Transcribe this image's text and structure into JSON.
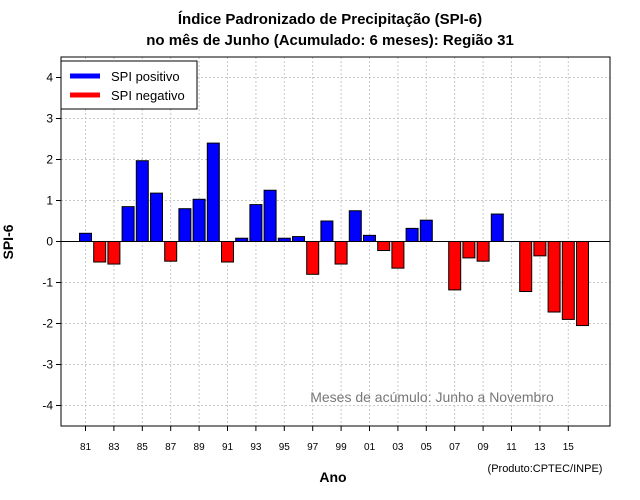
{
  "chart_data": {
    "type": "bar",
    "title_line1": "Índice Padronizado de Precipitação (SPI-6)",
    "title_line2": "no mês de Junho (Acumulado: 6 meses): Região 31",
    "xlabel": "Ano",
    "ylabel": "SPI-6",
    "ylim": [
      -4.5,
      4.5
    ],
    "yticks": [
      4,
      3,
      2,
      1,
      0,
      -1,
      -2,
      -3,
      -4
    ],
    "ytick_labels": [
      "4",
      "3",
      "2",
      "1",
      "0",
      "-1",
      "-2",
      "-3",
      "-4"
    ],
    "x_tick_labels": [
      "81",
      "83",
      "85",
      "87",
      "89",
      "91",
      "93",
      "95",
      "97",
      "99",
      "01",
      "03",
      "05",
      "07",
      "09",
      "11",
      "13",
      "15"
    ],
    "categories": [
      "1981",
      "1982",
      "1983",
      "1984",
      "1985",
      "1986",
      "1987",
      "1988",
      "1989",
      "1990",
      "1991",
      "1992",
      "1993",
      "1994",
      "1995",
      "1996",
      "1997",
      "1998",
      "1999",
      "2000",
      "2001",
      "2002",
      "2003",
      "2004",
      "2005",
      "2006",
      "2007",
      "2008",
      "2009",
      "2010",
      "2011",
      "2012",
      "2013",
      "2014",
      "2015",
      "2016"
    ],
    "values": [
      0.2,
      -0.5,
      -0.55,
      0.85,
      1.97,
      1.18,
      -0.48,
      0.8,
      1.03,
      2.4,
      -0.5,
      0.08,
      0.9,
      1.25,
      0.08,
      0.12,
      -0.8,
      0.5,
      -0.55,
      0.75,
      0.15,
      -0.22,
      -0.65,
      0.32,
      0.52,
      0.0,
      -1.18,
      -0.4,
      -0.48,
      0.67,
      0.0,
      -1.22,
      -0.35,
      -1.72,
      -1.9,
      -2.05
    ],
    "grid": true,
    "legend": [
      {
        "label": "SPI positivo",
        "color": "#0000ff"
      },
      {
        "label": "SPI negativo",
        "color": "#ff0000"
      }
    ],
    "legend_position": "top-left",
    "annotation": "Meses de acúmulo: Junho a Novembro",
    "credit": "(Produto:CPTEC/INPE)",
    "colors": {
      "positive": "#0000ff",
      "negative": "#ff0000",
      "grid": "#c8c8c8",
      "annotation": "#777777"
    }
  }
}
